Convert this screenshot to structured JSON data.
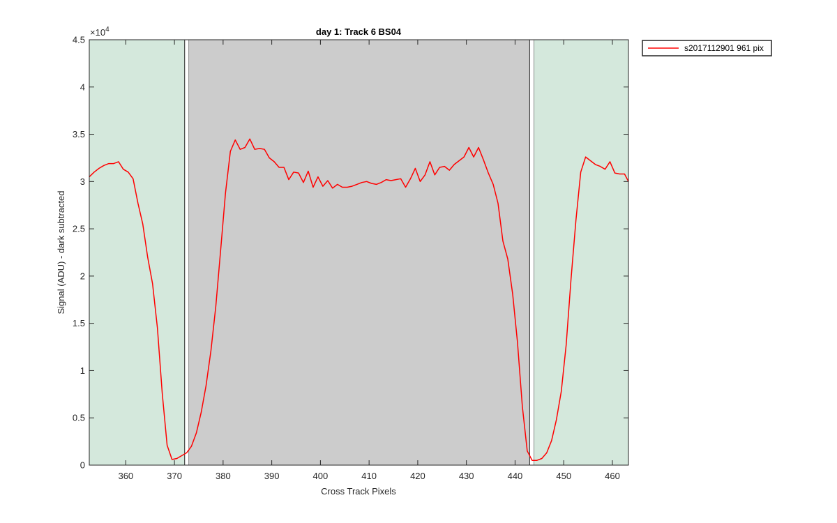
{
  "chart_data": {
    "type": "line",
    "title": "day 1: Track 6  BS04",
    "xlabel": "Cross Track Pixels",
    "ylabel": "Signal (ADU) - dark subtracted",
    "y_exponent_label": "×10",
    "y_exponent_power": "4",
    "xlim": [
      352.5,
      463.3
    ],
    "ylim": [
      0,
      45000
    ],
    "x_ticks": [
      360,
      370,
      380,
      390,
      400,
      410,
      420,
      430,
      440,
      450,
      460
    ],
    "x_tick_labels": [
      "360",
      "370",
      "380",
      "390",
      "400",
      "410",
      "420",
      "430",
      "440",
      "450",
      "460"
    ],
    "y_ticks": [
      0,
      5000,
      10000,
      15000,
      20000,
      25000,
      30000,
      35000,
      40000,
      45000
    ],
    "y_tick_labels": [
      "0",
      "0.5",
      "1",
      "1.5",
      "2",
      "2.5",
      "3",
      "3.5",
      "4",
      "4.5"
    ],
    "grid": false,
    "legend_position": "outside-top-right",
    "regions": [
      {
        "kind": "green-band",
        "x0": 352.5,
        "x1": 372.1,
        "color": "#d4e8dc"
      },
      {
        "kind": "gap-box",
        "x0": 372.1,
        "x1": 373.0,
        "color": "#ffffff"
      },
      {
        "kind": "gray-band",
        "x0": 373.0,
        "x1": 443.0,
        "color": "#cccccc"
      },
      {
        "kind": "gap-box",
        "x0": 443.0,
        "x1": 443.9,
        "color": "#ffffff"
      },
      {
        "kind": "green-band",
        "x0": 443.9,
        "x1": 463.3,
        "color": "#d4e8dc"
      }
    ],
    "series": [
      {
        "name": "s2017112901 961 pix",
        "color": "#ff0000",
        "x": [
          352.5,
          353.5,
          354.5,
          355.5,
          356.5,
          357.5,
          358.5,
          359.5,
          360.5,
          361.5,
          362.5,
          363.5,
          364.5,
          365.5,
          366.5,
          367.5,
          368.5,
          369.5,
          370.5,
          371.5,
          372.5,
          373.5,
          374.5,
          375.5,
          376.5,
          377.5,
          378.5,
          379.5,
          380.5,
          381.5,
          382.5,
          383.5,
          384.5,
          385.5,
          386.5,
          387.5,
          388.5,
          389.5,
          390.5,
          391.5,
          392.5,
          393.5,
          394.5,
          395.5,
          396.5,
          397.5,
          398.5,
          399.5,
          400.5,
          401.5,
          402.5,
          403.5,
          404.5,
          405.5,
          406.5,
          407.5,
          408.5,
          409.5,
          410.5,
          411.5,
          412.5,
          413.5,
          414.5,
          415.5,
          416.5,
          417.5,
          418.5,
          419.5,
          420.5,
          421.5,
          422.5,
          423.5,
          424.5,
          425.5,
          426.5,
          427.5,
          428.5,
          429.5,
          430.5,
          431.5,
          432.5,
          433.5,
          434.5,
          435.5,
          436.5,
          437.5,
          438.5,
          439.5,
          440.5,
          441.5,
          442.5,
          443.5,
          444.5,
          445.5,
          446.5,
          447.5,
          448.5,
          449.5,
          450.5,
          451.5,
          452.5,
          453.5,
          454.5,
          455.5,
          456.5,
          457.5,
          458.5,
          459.5,
          460.5,
          461.5,
          462.5,
          463.3
        ],
        "y": [
          30500,
          31000,
          31400,
          31700,
          31900,
          31900,
          32100,
          31300,
          31000,
          30300,
          27700,
          25500,
          22000,
          19200,
          14500,
          7600,
          2100,
          600,
          700,
          1000,
          1300,
          2000,
          3400,
          5600,
          8400,
          12100,
          16800,
          22800,
          28800,
          33200,
          34400,
          33400,
          33600,
          34500,
          33400,
          33500,
          33400,
          32500,
          32100,
          31500,
          31500,
          30200,
          31000,
          30900,
          29900,
          31100,
          29400,
          30500,
          29500,
          30100,
          29300,
          29700,
          29400,
          29400,
          29500,
          29700,
          29900,
          30000,
          29800,
          29700,
          29900,
          30200,
          30100,
          30200,
          30300,
          29400,
          30300,
          31400,
          30000,
          30700,
          32100,
          30700,
          31500,
          31600,
          31200,
          31800,
          32200,
          32600,
          33600,
          32600,
          33600,
          32300,
          30900,
          29700,
          27700,
          23700,
          21800,
          18100,
          13000,
          6200,
          1500,
          500,
          500,
          700,
          1300,
          2600,
          4800,
          7800,
          12700,
          19700,
          25900,
          31000,
          32600,
          32200,
          31800,
          31600,
          31300,
          32100,
          30900,
          30800,
          30800,
          30000
        ]
      }
    ]
  }
}
